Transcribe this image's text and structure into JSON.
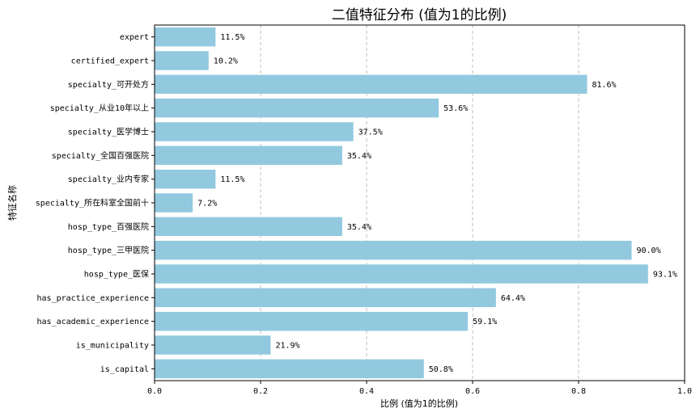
{
  "chart_data": {
    "type": "bar",
    "orientation": "horizontal",
    "title": "二值特征分布 (值为1的比例)",
    "xlabel": "比例 (值为1的比例)",
    "ylabel": "特征名称",
    "xlim": [
      0.0,
      1.0
    ],
    "xticks": [
      "0.0",
      "0.2",
      "0.4",
      "0.6",
      "0.8",
      "1.0"
    ],
    "grid": "x-axis dashed",
    "bar_color": "#92c9df",
    "categories": [
      "expert",
      "certified_expert",
      "specialty_可开处方",
      "specialty_从业10年以上",
      "specialty_医学博士",
      "specialty_全国百强医院",
      "specialty_业内专家",
      "specialty_所在科室全国前十",
      "hosp_type_百强医院",
      "hosp_type_三甲医院",
      "hosp_type_医保",
      "has_practice_experience",
      "has_academic_experience",
      "is_municipality",
      "is_capital"
    ],
    "values": [
      0.115,
      0.102,
      0.816,
      0.536,
      0.375,
      0.354,
      0.115,
      0.072,
      0.354,
      0.9,
      0.931,
      0.644,
      0.591,
      0.219,
      0.508
    ],
    "value_labels": [
      "11.5%",
      "10.2%",
      "81.6%",
      "53.6%",
      "37.5%",
      "35.4%",
      "11.5%",
      "7.2%",
      "35.4%",
      "90.0%",
      "93.1%",
      "64.4%",
      "59.1%",
      "21.9%",
      "50.8%"
    ]
  }
}
